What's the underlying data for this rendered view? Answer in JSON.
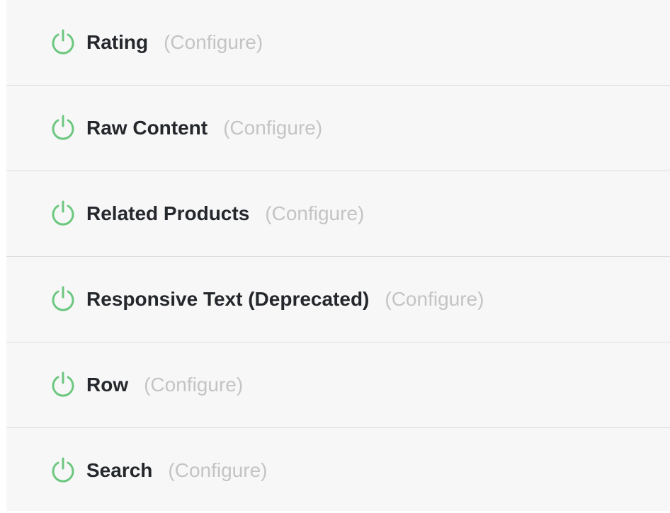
{
  "accent_color": "#6cc77f",
  "items": [
    {
      "name": "Rating",
      "configure": "(Configure)",
      "icon": "power-icon"
    },
    {
      "name": "Raw Content",
      "configure": "(Configure)",
      "icon": "power-icon"
    },
    {
      "name": "Related Products",
      "configure": "(Configure)",
      "icon": "power-icon"
    },
    {
      "name": "Responsive Text (Deprecated)",
      "configure": "(Configure)",
      "icon": "power-icon"
    },
    {
      "name": "Row",
      "configure": "(Configure)",
      "icon": "power-icon"
    },
    {
      "name": "Search",
      "configure": "(Configure)",
      "icon": "power-icon"
    }
  ]
}
